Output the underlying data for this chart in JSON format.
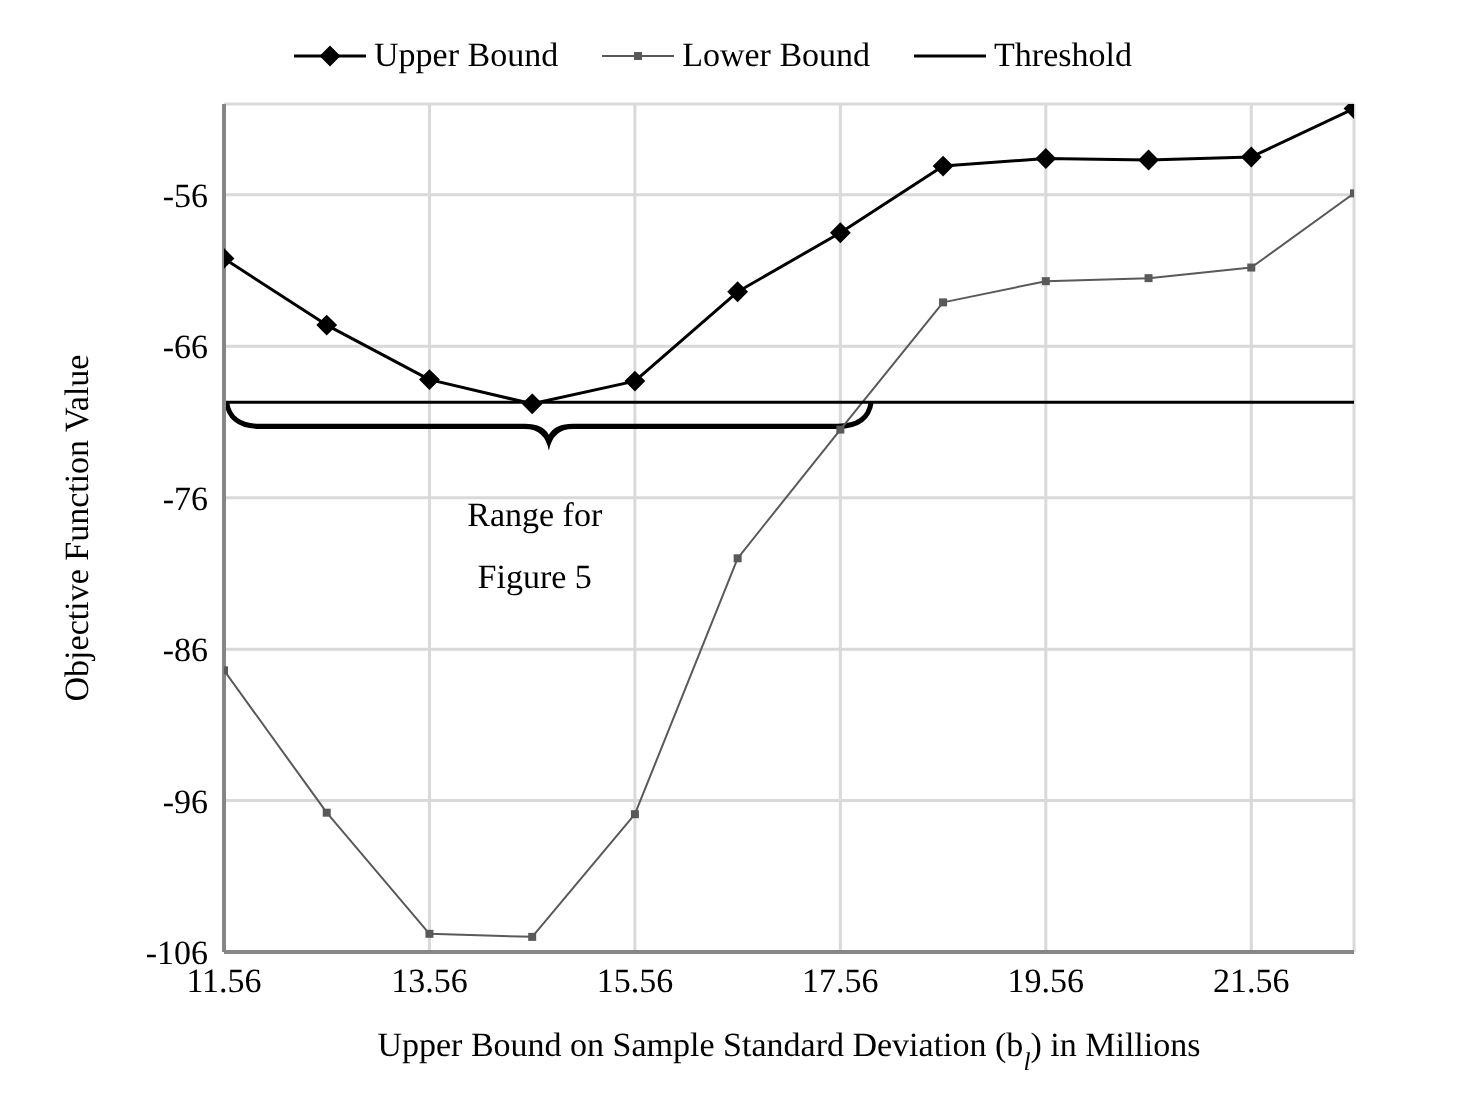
{
  "chart_data": {
    "type": "line",
    "xlabel": "Upper Bound on Sample Standard Deviation (b$_{l}$) in Millions",
    "ylabel": "Objective Function Value",
    "x": [
      11.56,
      12.56,
      13.56,
      14.56,
      15.56,
      16.56,
      17.56,
      18.56,
      19.56,
      20.56,
      21.56,
      22.56
    ],
    "series": [
      {
        "name": "Upper Bound",
        "color": "#000000",
        "marker": "diamond",
        "values": [
          -60.2,
          -64.6,
          -68.2,
          -69.8,
          -68.3,
          -62.4,
          -58.5,
          -54.1,
          -53.6,
          -53.7,
          -53.5,
          -50.3
        ]
      },
      {
        "name": "Lower Bound",
        "color": "#595959",
        "marker": "square",
        "values": [
          -87.4,
          -96.8,
          -104.8,
          -105.0,
          -96.9,
          -80.0,
          -71.5,
          -63.1,
          -61.7,
          -61.5,
          -60.8,
          -55.9
        ]
      },
      {
        "name": "Threshold",
        "color": "#000000",
        "marker": "none",
        "values": [
          -69.7,
          -69.7,
          -69.7,
          -69.7,
          -69.7,
          -69.7,
          -69.7,
          -69.7,
          -69.7,
          -69.7,
          -69.7,
          -69.7
        ]
      }
    ],
    "annotations": [
      "Range for\nFigure 5"
    ],
    "xlim": [
      11.56,
      22.56
    ],
    "xticks": [
      11.56,
      13.56,
      15.56,
      17.56,
      19.56,
      21.56
    ],
    "ylim": [
      -106,
      -50
    ],
    "yticks": [
      -106,
      -96,
      -86,
      -76,
      -66,
      -56
    ],
    "grid": true,
    "legend": "top"
  }
}
